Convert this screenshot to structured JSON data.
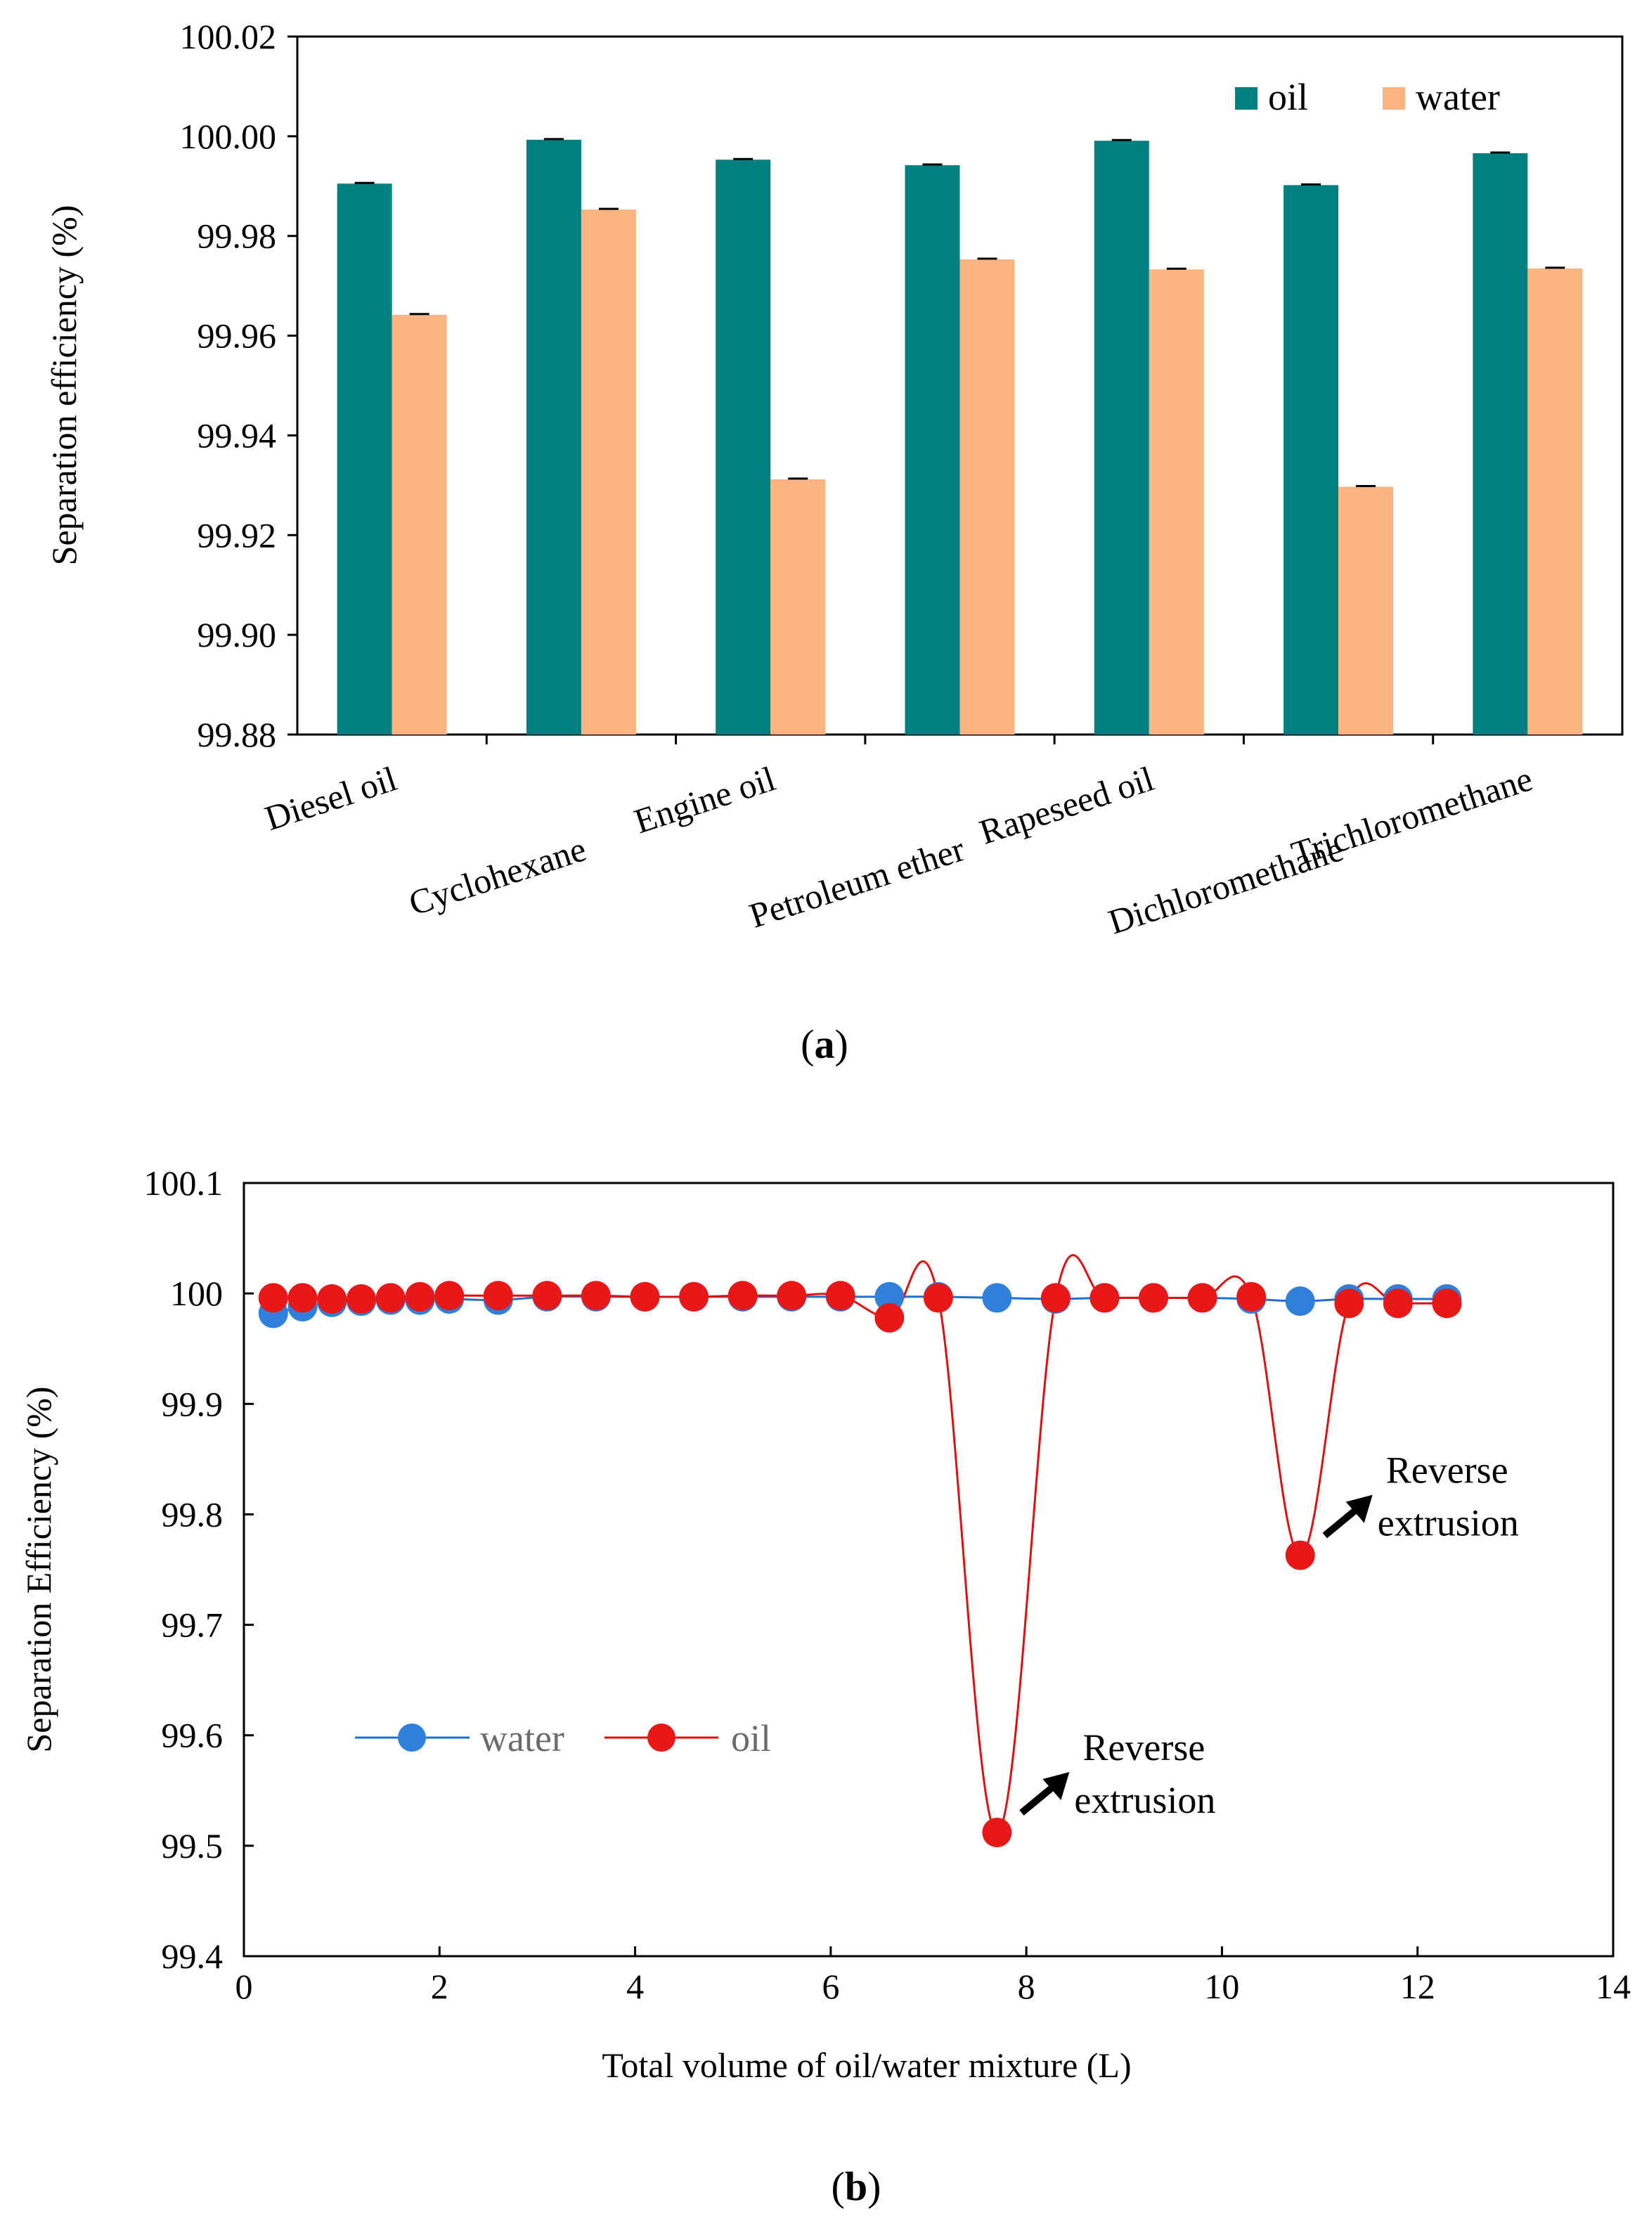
{
  "chart_data": [
    {
      "type": "bar",
      "title": "",
      "panel_label": "a",
      "ylabel": "Separation efficiency (%)",
      "xlabel": "",
      "ylim": [
        99.88,
        100.02
      ],
      "yticks": [
        "99.88",
        "99.90",
        "99.92",
        "99.94",
        "99.96",
        "99.98",
        "100.00",
        "100.02"
      ],
      "categories": [
        "Diesel oil",
        "Cyclohexane",
        "Engine oil",
        "Petroleum ether",
        "Rapeseed oil",
        "Dichloromethane",
        "Trichloromethane"
      ],
      "series": [
        {
          "name": "oil",
          "color": "#008080",
          "values": [
            99.9905,
            99.9993,
            99.9953,
            99.9942,
            99.9991,
            99.9902,
            99.9966
          ]
        },
        {
          "name": "water",
          "color": "#fbb382",
          "values": [
            99.9642,
            99.9853,
            99.9312,
            99.9753,
            99.9733,
            99.9297,
            99.9735
          ]
        }
      ],
      "legend_position": "top-right",
      "grid": false
    },
    {
      "type": "line",
      "title": "",
      "panel_label": "b",
      "xlabel": "Total volume of oil/water mixture (L)",
      "ylabel": "Separation Efficiency (%)",
      "xlim": [
        0,
        14
      ],
      "ylim": [
        99.4,
        100.1
      ],
      "xticks": [
        "0",
        "2",
        "4",
        "6",
        "8",
        "10",
        "12",
        "14"
      ],
      "yticks": [
        "99.4",
        "99.5",
        "99.6",
        "99.7",
        "99.8",
        "99.9",
        "100",
        "100.1"
      ],
      "series": [
        {
          "name": "water",
          "color": "#1f6fd1",
          "marker_color": "#2f7fdb",
          "x": [
            0.3,
            0.6,
            0.9,
            1.2,
            1.5,
            1.8,
            2.1,
            2.6,
            3.1,
            3.6,
            4.1,
            4.6,
            5.1,
            5.6,
            6.1,
            6.6,
            7.1,
            7.7,
            8.3,
            8.8,
            9.3,
            9.8,
            10.3,
            10.8,
            11.3,
            11.8,
            12.3
          ],
          "y": [
            99.982,
            99.988,
            99.992,
            99.993,
            99.994,
            99.994,
            99.995,
            99.994,
            99.997,
            99.997,
            99.997,
            99.997,
            99.997,
            99.997,
            99.997,
            99.997,
            99.997,
            99.996,
            99.995,
            99.996,
            99.996,
            99.996,
            99.995,
            99.993,
            99.995,
            99.995,
            99.995
          ]
        },
        {
          "name": "oil",
          "color": "#e01010",
          "marker_color": "#e81818",
          "x": [
            0.3,
            0.6,
            0.9,
            1.2,
            1.5,
            1.8,
            2.1,
            2.6,
            3.1,
            3.6,
            4.1,
            4.6,
            5.1,
            5.6,
            6.1,
            6.6,
            7.1,
            7.7,
            8.3,
            8.8,
            9.3,
            9.8,
            10.3,
            10.8,
            11.3,
            11.8,
            12.3
          ],
          "y": [
            99.996,
            99.996,
            99.995,
            99.995,
            99.996,
            99.997,
            99.998,
            99.998,
            99.998,
            99.998,
            99.997,
            99.997,
            99.998,
            99.998,
            99.998,
            99.978,
            99.996,
            99.512,
            99.996,
            99.996,
            99.996,
            99.996,
            99.997,
            99.763,
            99.991,
            99.991,
            99.991
          ]
        }
      ],
      "annotations": [
        {
          "text_line1": "Reverse",
          "text_line2": "extrusion",
          "x": 7.7,
          "y": 99.512
        },
        {
          "text_line1": "Reverse",
          "text_line2": "extrusion",
          "x": 10.8,
          "y": 99.763
        }
      ],
      "legend_position": "lower-left",
      "grid": false
    }
  ]
}
